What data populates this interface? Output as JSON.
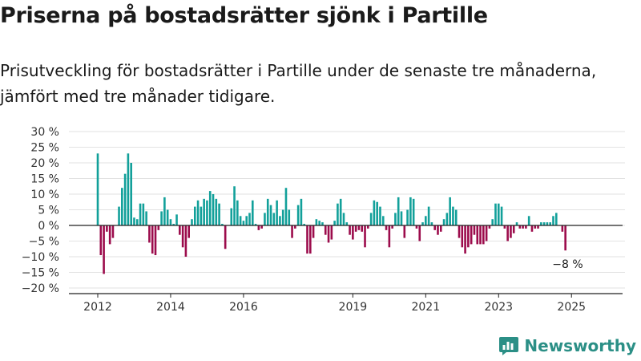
{
  "header": {
    "title": "Priserna på bostadsrätter sjönk i Partille",
    "subtitle": "Prisutveckling för bostadsrätter i Partille under de senaste tre månaderna, jämfört med tre månader tidigare."
  },
  "brand": {
    "name": "Newsworthy",
    "color": "#2b8f86",
    "logo_icon": "bar-chart-icon"
  },
  "colors": {
    "positive": "#12a09a",
    "negative": "#9c0c4c"
  },
  "chart_data": {
    "type": "bar",
    "title": "Priserna på bostadsrätter sjönk i Partille",
    "subtitle": "Prisutveckling för bostadsrätter i Partille under de senaste tre månaderna, jämfört med tre månader tidigare.",
    "xlabel": "",
    "ylabel": "",
    "unit": "%",
    "ylim": [
      -20,
      30
    ],
    "y_ticks": [
      30,
      25,
      20,
      15,
      10,
      5,
      0,
      -5,
      -10,
      -15,
      -20
    ],
    "y_tick_labels": [
      "30 %",
      "25 %",
      "20 %",
      "15 %",
      "10 %",
      "5 %",
      "0 %",
      "−5 %",
      "−10 %",
      "−15 %",
      "−20 %"
    ],
    "x_ticks": [
      "2012",
      "2014",
      "2016",
      "2019",
      "2021",
      "2023",
      "2025"
    ],
    "grid": true,
    "start": "2012-01",
    "values": [
      23,
      -9.5,
      -15.5,
      -2,
      -6,
      -4,
      0,
      6,
      12,
      16.5,
      23,
      20,
      2.5,
      2,
      7,
      7,
      4.5,
      -5.5,
      -9,
      -9.5,
      -1.5,
      4.5,
      9,
      5,
      2,
      0.5,
      3.5,
      -3,
      -7,
      -10,
      -4,
      2,
      6,
      8,
      6,
      8.5,
      8,
      11,
      10,
      8.5,
      7,
      0.5,
      -7.5,
      0,
      5.5,
      12.5,
      8,
      3,
      1.5,
      3,
      4,
      8,
      0.5,
      -1.5,
      -1,
      4,
      8.5,
      6.5,
      4,
      8,
      3,
      5,
      12,
      5,
      -4,
      -1,
      6.5,
      8.5,
      0.5,
      -9,
      -9,
      -4,
      2,
      1.5,
      1,
      -3,
      -5.5,
      -4.5,
      1.5,
      7,
      8.5,
      4,
      1,
      -3,
      -4.5,
      -2,
      -1.5,
      -2,
      -7,
      -1,
      4,
      8,
      7.5,
      6,
      3,
      -1.5,
      -7,
      -1,
      4,
      9,
      4.5,
      -4,
      5,
      9,
      8.5,
      -1,
      -5,
      1,
      3,
      6,
      1,
      -1.5,
      -3,
      -2,
      2,
      4,
      9,
      6,
      5,
      -4,
      -7,
      -9,
      -7,
      -6,
      -3,
      -6,
      -6,
      -6,
      -5,
      -1,
      2,
      7,
      7,
      6,
      -1,
      -5,
      -4,
      -2.5,
      1,
      -1,
      -1,
      -1,
      3,
      -2,
      -1,
      -1,
      1,
      1,
      1,
      1,
      3,
      4,
      0,
      -2,
      -8
    ],
    "annotation": {
      "text": "−8 %",
      "points_to": "last"
    }
  }
}
